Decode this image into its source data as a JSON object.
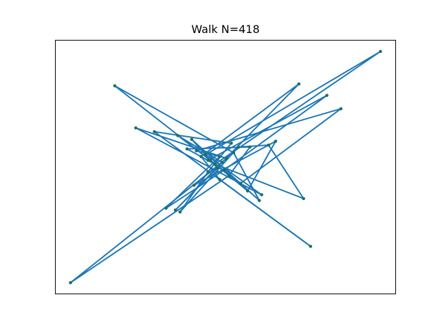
{
  "chart_data": {
    "type": "line",
    "title": "Walk N=418",
    "xlabel": "",
    "ylabel": "",
    "axes_ticks_visible": false,
    "grid": false,
    "colors": {
      "line": "#1f77b4",
      "marker": "#1f6f5f",
      "background": "#ffffff",
      "frame": "#000000"
    },
    "series": [
      {
        "marker": "circle",
        "x": [
          0.0,
          -0.3,
          4.8,
          0.4,
          -2.1,
          0.2,
          -0.8,
          5.4,
          1.1,
          -1.6,
          0.3,
          -6.2,
          0.6,
          1.5,
          -1.2,
          0.0,
          7.1,
          -0.4,
          2.0,
          -3.4,
          0.5,
          -0.9,
          2.6,
          1.4,
          -0.2,
          -4.3,
          0.8,
          1.9,
          -1.0,
          0.1,
          -1.7,
          3.6,
          -0.6,
          0.2,
          4.1,
          -2.6,
          0.7,
          -0.3,
          -1.5,
          1.0,
          2.3,
          3.8,
          0.0
        ],
        "y": [
          0.0,
          0.2,
          3.6,
          -0.3,
          -2.3,
          0.4,
          0.7,
          2.9,
          -1.0,
          1.5,
          0.1,
          -6.2,
          -0.6,
          0.9,
          0.8,
          0.0,
          5.9,
          0.5,
          -1.6,
          1.9,
          0.3,
          -1.1,
          1.2,
          -1.4,
          0.2,
          4.1,
          0.6,
          -1.9,
          1.3,
          -0.2,
          -2.4,
          4.2,
          0.4,
          -0.8,
          -4.3,
          1.7,
          1.1,
          -0.4,
          -2.5,
          0.9,
          1.0,
          -1.8,
          0.0
        ]
      }
    ]
  }
}
